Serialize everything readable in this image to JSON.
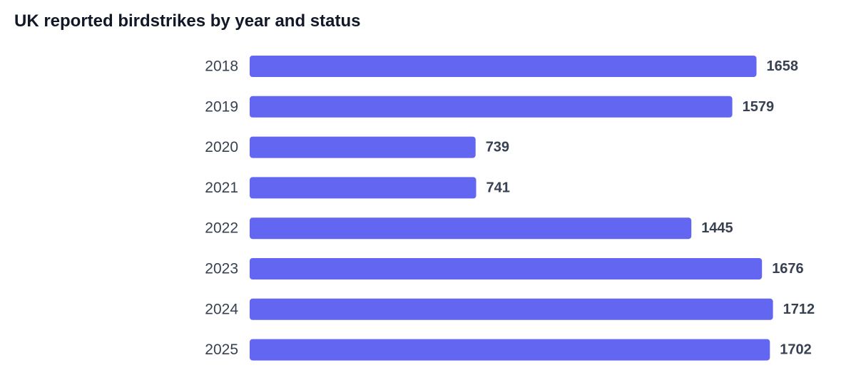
{
  "chart_data": {
    "type": "bar",
    "orientation": "horizontal",
    "title": "UK reported birdstrikes by year and status",
    "categories": [
      "2018",
      "2019",
      "2020",
      "2021",
      "2022",
      "2023",
      "2024",
      "2025"
    ],
    "values": [
      1658,
      1579,
      739,
      741,
      1445,
      1676,
      1712,
      1702
    ],
    "xlim": [
      0,
      2000
    ],
    "grid": false,
    "legend": "none",
    "bar_color": "#6366f1",
    "data_labels": true
  }
}
